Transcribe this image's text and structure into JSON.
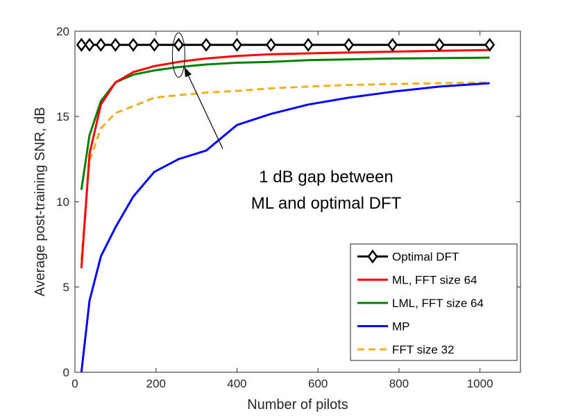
{
  "chart_data": {
    "type": "line",
    "xlabel": "Number of pilots",
    "ylabel": "Average post-training SNR, dB",
    "xlim": [
      0,
      1100
    ],
    "ylim": [
      0,
      20
    ],
    "xticks": [
      0,
      200,
      400,
      600,
      800,
      1000
    ],
    "yticks": [
      0,
      5,
      10,
      15,
      20
    ],
    "xtick_labels": [
      "0",
      "200",
      "400",
      "600",
      "800",
      "1000"
    ],
    "ytick_labels": [
      "0",
      "5",
      "10",
      "15",
      "20"
    ],
    "grid": false,
    "legend_position": "bottom-right",
    "annotation": {
      "lines": [
        "1 dB gap between",
        "ML and optimal DFT"
      ],
      "ellipse_center": [
        256,
        18.6
      ],
      "arrow_target": [
        270,
        17.9
      ],
      "arrow_tail": [
        365,
        13.1
      ]
    },
    "series": [
      {
        "name": "Optimal DFT",
        "color": "#000000",
        "marker": "diamond",
        "style": "solid",
        "x": [
          16,
          36,
          64,
          100,
          144,
          196,
          256,
          324,
          400,
          484,
          576,
          676,
          784,
          900,
          1024
        ],
        "y": [
          19.2,
          19.2,
          19.2,
          19.2,
          19.2,
          19.2,
          19.2,
          19.2,
          19.2,
          19.2,
          19.2,
          19.2,
          19.2,
          19.2,
          19.2
        ]
      },
      {
        "name": "ML, FFT size 64",
        "color": "#ff0000",
        "marker": "none",
        "style": "solid",
        "x": [
          16,
          36,
          64,
          100,
          144,
          196,
          256,
          324,
          400,
          484,
          576,
          676,
          784,
          900,
          1024
        ],
        "y": [
          6.1,
          12.8,
          15.7,
          17.0,
          17.6,
          17.95,
          18.2,
          18.4,
          18.55,
          18.65,
          18.7,
          18.75,
          18.8,
          18.85,
          18.9
        ]
      },
      {
        "name": "LML, FFT size 64",
        "color": "#007f00",
        "marker": "none",
        "style": "solid",
        "x": [
          16,
          36,
          64,
          100,
          144,
          196,
          256,
          324,
          400,
          484,
          576,
          676,
          784,
          900,
          1024
        ],
        "y": [
          10.7,
          13.9,
          15.9,
          17.0,
          17.45,
          17.7,
          17.9,
          18.05,
          18.15,
          18.2,
          18.3,
          18.35,
          18.4,
          18.42,
          18.45
        ]
      },
      {
        "name": "MP",
        "color": "#0000ff",
        "marker": "none",
        "style": "solid",
        "x": [
          16,
          36,
          64,
          100,
          144,
          196,
          256,
          324,
          400,
          484,
          576,
          676,
          784,
          900,
          1024
        ],
        "y": [
          0.0,
          4.2,
          6.8,
          8.5,
          10.3,
          11.75,
          12.5,
          13.0,
          14.5,
          15.15,
          15.7,
          16.1,
          16.45,
          16.75,
          16.95
        ]
      },
      {
        "name": "FFT size 32",
        "color": "#edb120",
        "marker": "none",
        "style": "dashed",
        "x": [
          16,
          36,
          64,
          100,
          144,
          196,
          256,
          324,
          400,
          484,
          576,
          676,
          784,
          900,
          1024
        ],
        "y": [
          6.6,
          12.4,
          14.3,
          15.2,
          15.6,
          16.1,
          16.25,
          16.4,
          16.5,
          16.65,
          16.75,
          16.85,
          16.9,
          16.95,
          17.0
        ]
      }
    ]
  }
}
